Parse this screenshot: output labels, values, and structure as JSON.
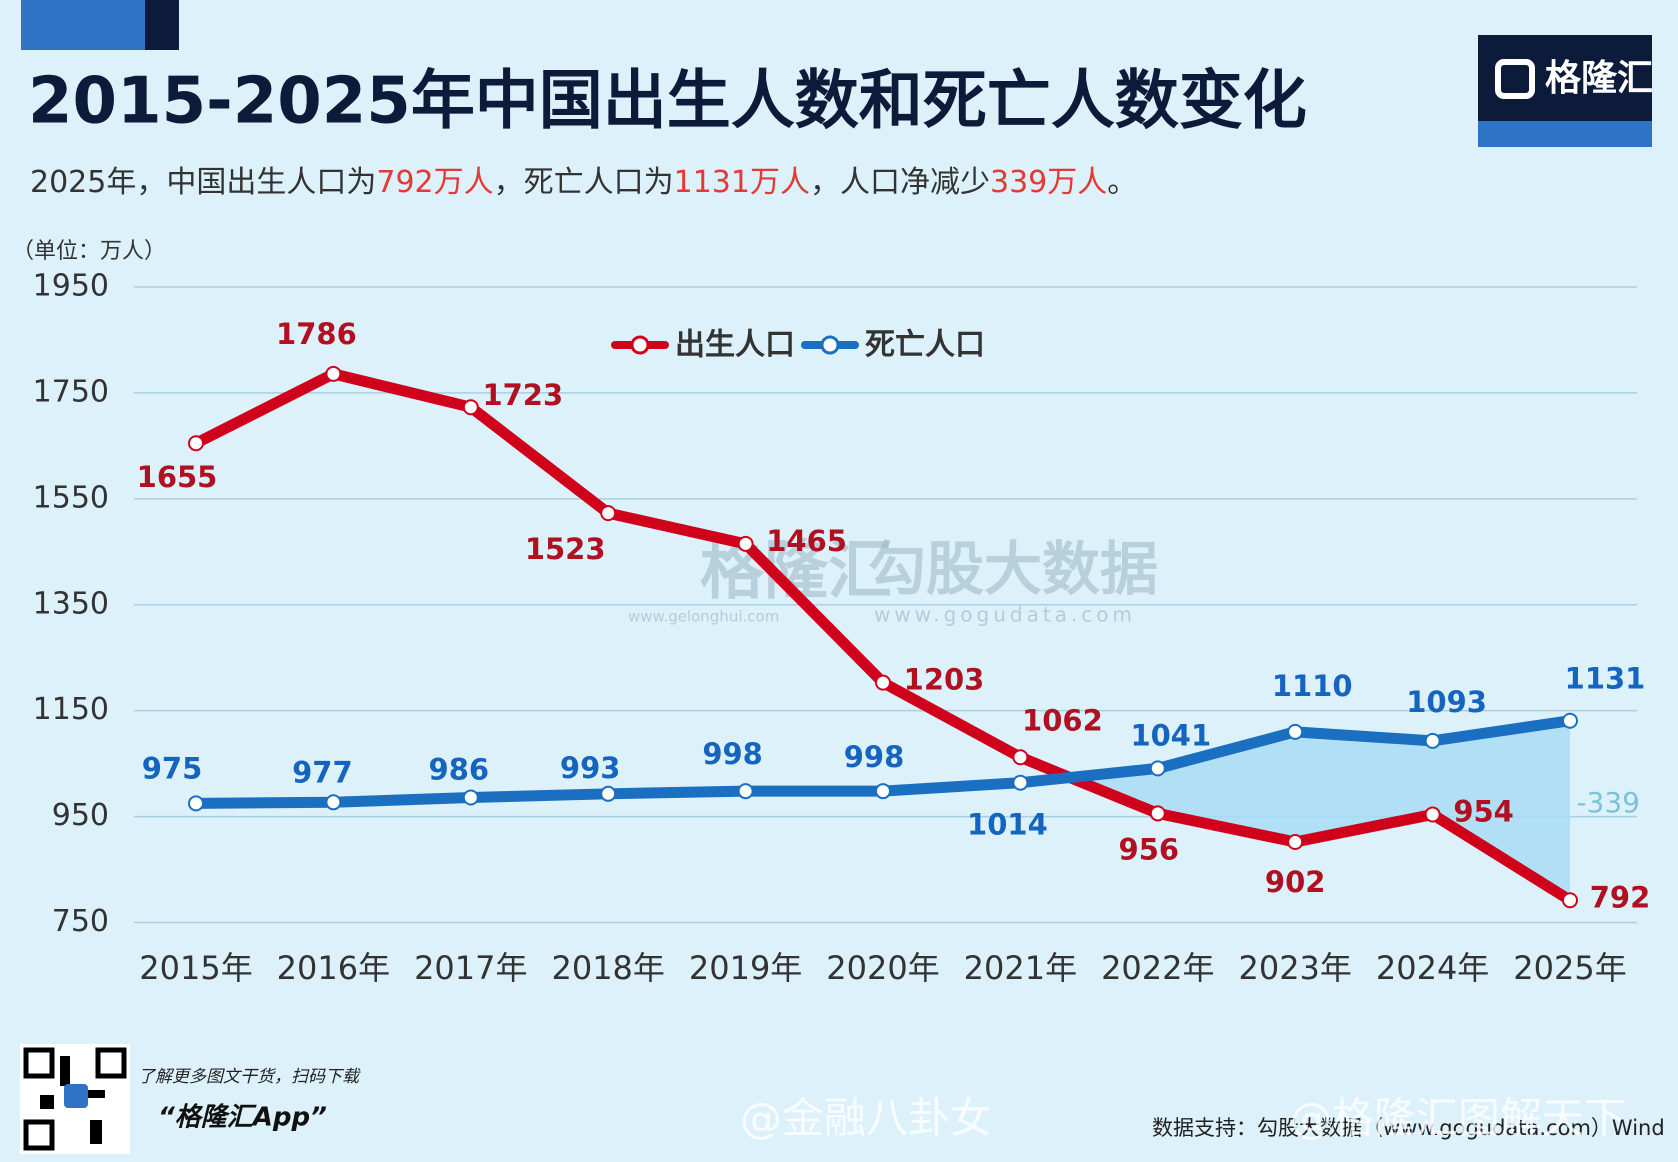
{
  "logo_text": "格隆汇",
  "chart_data": {
    "type": "line",
    "title": "2015-2025年中国出生人数和死亡人数变化",
    "subtitle": [
      "2025年，中国出生人口为",
      "792万人",
      "，死亡人口为",
      "1131万人",
      "，人口净减少",
      "339万人",
      "。"
    ],
    "subtitle_highlight_color": "#e53935",
    "unit_label": "（单位：万人）",
    "categories": [
      "2015年",
      "2016年",
      "2017年",
      "2018年",
      "2019年",
      "2020年",
      "2021年",
      "2022年",
      "2023年",
      "2024年",
      "2025年"
    ],
    "series": [
      {
        "name": "出生人口",
        "color": "#d0021b",
        "values": [
          1655,
          1786,
          1723,
          1523,
          1465,
          1203,
          1062,
          956,
          902,
          954,
          792
        ]
      },
      {
        "name": "死亡人口",
        "color": "#1a6fc0",
        "values": [
          975,
          977,
          986,
          993,
          998,
          998,
          1014,
          1041,
          1110,
          1093,
          1131
        ]
      }
    ],
    "ylim": [
      750,
      1950
    ],
    "yticks": [
      750,
      950,
      1150,
      1350,
      1550,
      1750,
      1950
    ],
    "grid": true,
    "annotation": "-339",
    "watermarks": [
      "格隆汇",
      "www.gelonghui.com",
      "勾股大数据",
      "www.gogudata.com",
      "@金融八卦女",
      "@格隆汇图解天下"
    ],
    "footer": {
      "promo": "了解更多图文干货，扫码下载",
      "app": "“格隆汇App”",
      "source": "数据支持：勾股大数据（www.gogudata.com）Wind"
    }
  }
}
